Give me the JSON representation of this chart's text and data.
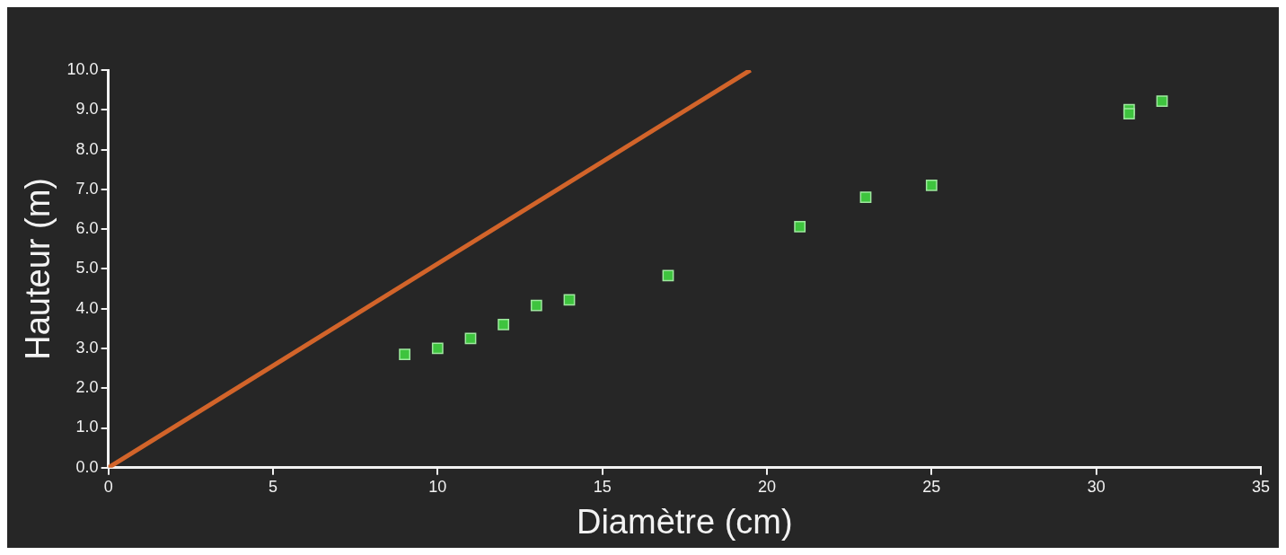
{
  "chart_data": {
    "type": "scatter",
    "xlabel": "Diamètre (cm)",
    "ylabel": "Hauteur (m)",
    "marker": "square",
    "grid": false,
    "xlim": [
      0,
      35
    ],
    "xticks": [
      0,
      5,
      10,
      15,
      20,
      25,
      30,
      35
    ],
    "ylim": [
      0,
      10
    ],
    "yticks": [
      {
        "value": 0,
        "label": "0.0"
      },
      {
        "value": 1,
        "label": "1.0"
      },
      {
        "value": 2,
        "label": "2.0"
      },
      {
        "value": 3,
        "label": "3.0"
      },
      {
        "value": 4,
        "label": "4.0"
      },
      {
        "value": 5,
        "label": "5.0"
      },
      {
        "value": 6,
        "label": "6.0"
      },
      {
        "value": 7,
        "label": "7.0"
      },
      {
        "value": 8,
        "label": "8.0"
      },
      {
        "value": 9,
        "label": "9.0"
      },
      {
        "value": 10,
        "label": "10.0"
      }
    ],
    "series": [
      {
        "color": "#3ec43e",
        "x": [
          9,
          10,
          11,
          12,
          13,
          14,
          17,
          21,
          23,
          25,
          31,
          31,
          32
        ],
        "values": [
          2.85,
          3.0,
          3.25,
          3.6,
          4.08,
          4.22,
          4.83,
          6.06,
          6.8,
          7.1,
          9.0,
          8.9,
          9.22
        ]
      },
      {
        "type": "line",
        "color": "#d2642a",
        "marker": "none",
        "x": [
          0,
          19.5
        ],
        "values": [
          0,
          10
        ]
      }
    ]
  }
}
